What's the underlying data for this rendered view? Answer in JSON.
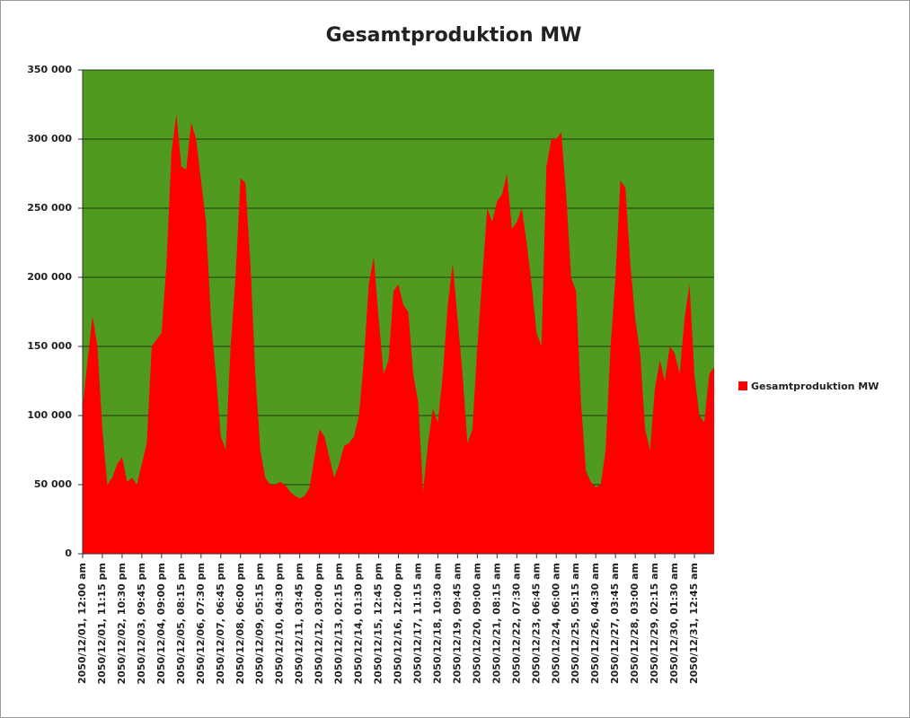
{
  "chart_data": {
    "type": "area",
    "title": "Gesamtproduktion MW",
    "categories": [
      "2050/12/01, 12:00 am",
      null,
      null,
      null,
      "2050/12/01, 11:15 pm",
      null,
      null,
      null,
      "2050/12/02, 10:30 pm",
      null,
      null,
      null,
      "2050/12/03, 09:45 pm",
      null,
      null,
      null,
      "2050/12/04, 09:00 pm",
      null,
      null,
      null,
      "2050/12/05, 08:15 pm",
      null,
      null,
      null,
      "2050/12/06, 07:30 pm",
      null,
      null,
      null,
      "2050/12/07, 06:45 pm",
      null,
      null,
      null,
      "2050/12/08, 06:00 pm",
      null,
      null,
      null,
      "2050/12/09, 05:15 pm",
      null,
      null,
      null,
      "2050/12/10, 04:30 pm",
      null,
      null,
      null,
      "2050/12/11, 03:45 pm",
      null,
      null,
      null,
      "2050/12/12, 03:00 pm",
      null,
      null,
      null,
      "2050/12/13, 02:15 pm",
      null,
      null,
      null,
      "2050/12/14, 01:30 pm",
      null,
      null,
      null,
      "2050/12/15, 12:45 pm",
      null,
      null,
      null,
      "2050/12/16, 12:00 pm",
      null,
      null,
      null,
      "2050/12/17, 11:15 am",
      null,
      null,
      null,
      "2050/12/18, 10:30 am",
      null,
      null,
      null,
      "2050/12/19, 09:45 am",
      null,
      null,
      null,
      "2050/12/20, 09:00 am",
      null,
      null,
      null,
      "2050/12/21, 08:15 am",
      null,
      null,
      null,
      "2050/12/22, 07:30 am",
      null,
      null,
      null,
      "2050/12/23, 06:45 am",
      null,
      null,
      null,
      "2050/12/24, 06:00 am",
      null,
      null,
      null,
      "2050/12/25, 05:15 am",
      null,
      null,
      null,
      "2050/12/26, 04:30 am",
      null,
      null,
      null,
      "2050/12/27, 03:45 am",
      null,
      null,
      null,
      "2050/12/28, 03:00 am",
      null,
      null,
      null,
      "2050/12/29, 02:15 am",
      null,
      null,
      null,
      "2050/12/30, 01:30 am",
      null,
      null,
      null,
      "2050/12/31, 12:45 am",
      null,
      null,
      null,
      null
    ],
    "series": [
      {
        "name": "Gesamtproduktion MW",
        "color": "#ff0000",
        "values": [
          105000,
          140000,
          172000,
          150000,
          90000,
          50000,
          55000,
          65000,
          70000,
          52000,
          55000,
          50000,
          65000,
          80000,
          150000,
          155000,
          160000,
          210000,
          290000,
          318000,
          280000,
          278000,
          312000,
          300000,
          270000,
          240000,
          170000,
          130000,
          85000,
          75000,
          150000,
          200000,
          272000,
          268000,
          210000,
          130000,
          75000,
          55000,
          50000,
          50000,
          52000,
          50000,
          45000,
          42000,
          40000,
          42000,
          48000,
          70000,
          90000,
          85000,
          70000,
          55000,
          65000,
          78000,
          80000,
          85000,
          100000,
          140000,
          195000,
          215000,
          170000,
          130000,
          140000,
          190000,
          195000,
          180000,
          175000,
          130000,
          110000,
          45000,
          80000,
          105000,
          95000,
          130000,
          180000,
          210000,
          170000,
          130000,
          80000,
          90000,
          150000,
          200000,
          250000,
          240000,
          255000,
          260000,
          275000,
          235000,
          240000,
          250000,
          225000,
          195000,
          160000,
          150000,
          280000,
          300000,
          300000,
          305000,
          260000,
          200000,
          190000,
          110000,
          60000,
          52000,
          48000,
          50000,
          75000,
          150000,
          200000,
          270000,
          265000,
          210000,
          170000,
          145000,
          90000,
          75000,
          120000,
          140000,
          125000,
          150000,
          145000,
          130000,
          170000,
          195000,
          130000,
          100000,
          95000,
          130000,
          135000
        ]
      }
    ],
    "ylim": [
      0,
      350000
    ],
    "yticks": [
      0,
      {
        "value": 50000,
        "label": "50 000"
      },
      {
        "value": 100000,
        "label": "100 000"
      },
      {
        "value": 150000,
        "label": "150 000"
      },
      {
        "value": 200000,
        "label": "200 000"
      },
      {
        "value": 250000,
        "label": "250 000"
      },
      {
        "value": 300000,
        "label": "300 000"
      },
      {
        "value": 350000,
        "label": "350 000"
      }
    ],
    "grid": true,
    "plot_background": "#4f9a1f",
    "legend": "right"
  }
}
